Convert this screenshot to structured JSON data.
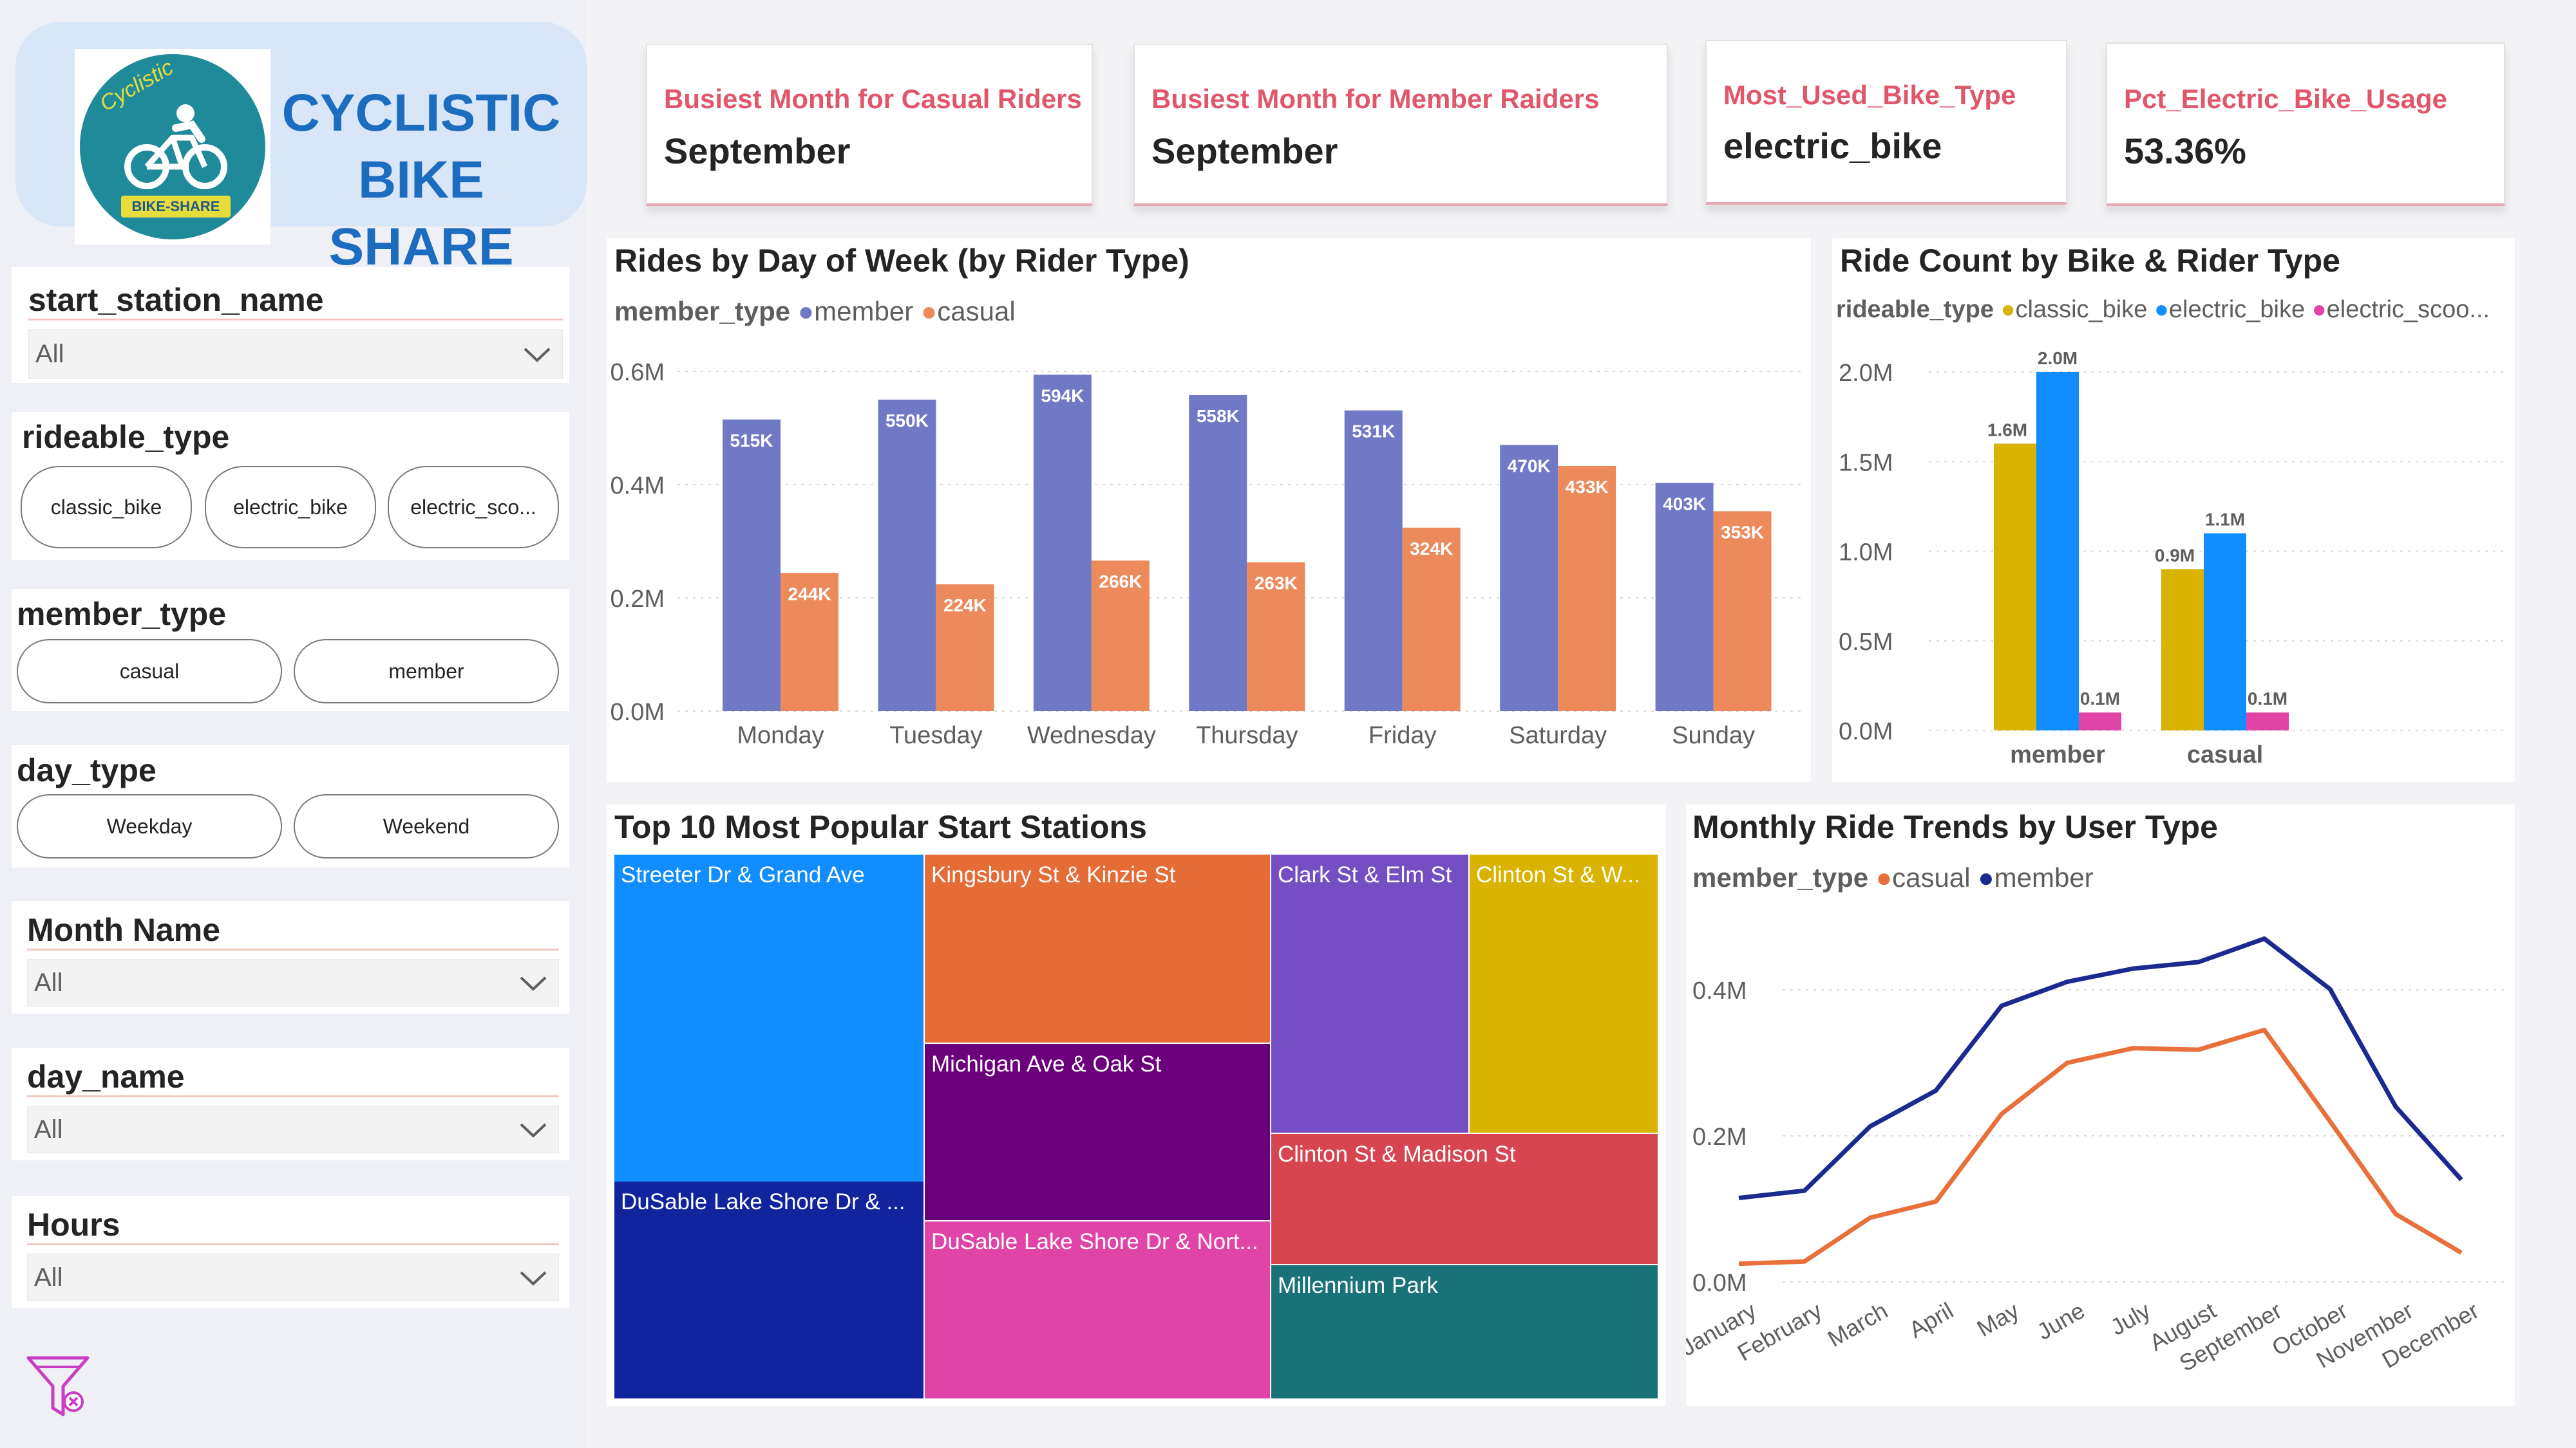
{
  "brand": {
    "title_line1": "CYCLISTIC",
    "title_line2": "BIKE SHARE",
    "logo_arc": "Cyclistic",
    "logo_ribbon": "BIKE-SHARE",
    "logo_icon": "cyclist-icon"
  },
  "slicers": {
    "start_station_name": {
      "title": "start_station_name",
      "value": "All"
    },
    "rideable_type": {
      "title": "rideable_type",
      "options": [
        "classic_bike",
        "electric_bike",
        "electric_sco..."
      ]
    },
    "member_type": {
      "title": "member_type",
      "options": [
        "casual",
        "member"
      ]
    },
    "day_type": {
      "title": "day_type",
      "options": [
        "Weekday",
        "Weekend"
      ]
    },
    "month_name": {
      "title": "Month Name",
      "value": "All"
    },
    "day_name": {
      "title": "day_name",
      "value": "All"
    },
    "hours": {
      "title": "Hours",
      "value": "All"
    }
  },
  "clear_filter_icon": "filter-clear-icon",
  "kpis": [
    {
      "label": "Busiest Month for Casual Riders",
      "value": "September"
    },
    {
      "label": "Busiest Month for Member Raiders",
      "value": "September"
    },
    {
      "label": "Most_Used_Bike_Type",
      "value": "electric_bike"
    },
    {
      "label": "Pct_Electric_Bike_Usage",
      "value": "53.36%"
    }
  ],
  "colors": {
    "member": "#7079c6",
    "casual": "#ec8a5c",
    "classic_bike": "#d8b400",
    "electric_bike": "#118dff",
    "electric_scooter": "#e044a7",
    "trend_member": "#1a2a8f",
    "trend_casual": "#e8703a",
    "kpi_label": "#e0566a",
    "brand_blue": "#1c6cbf"
  },
  "charts": {
    "rides_by_day": {
      "title": "Rides by Day of Week (by Rider Type)",
      "legend_title": "member_type",
      "legend": [
        "member",
        "casual"
      ],
      "y_ticks": [
        "0.6M",
        "0.4M",
        "0.2M",
        "0.0M"
      ]
    },
    "bike_rider": {
      "title": "Ride Count by Bike & Rider Type",
      "legend_title": "rideable_type",
      "legend": [
        "classic_bike",
        "electric_bike",
        "electric_scoo..."
      ],
      "y_ticks": [
        "2.0M",
        "1.5M",
        "1.0M",
        "0.5M",
        "0.0M"
      ]
    },
    "treemap": {
      "title": "Top 10 Most Popular Start Stations"
    },
    "monthly": {
      "title": "Monthly Ride Trends by User Type",
      "legend_title": "member_type",
      "legend": [
        "casual",
        "member"
      ],
      "y_ticks": [
        "0.4M",
        "0.2M",
        "0.0M"
      ]
    }
  },
  "chart_data": [
    {
      "type": "bar",
      "title": "Rides by Day of Week (by Rider Type)",
      "categories": [
        "Monday",
        "Tuesday",
        "Wednesday",
        "Thursday",
        "Friday",
        "Saturday",
        "Sunday"
      ],
      "series": [
        {
          "name": "member",
          "values": [
            515,
            550,
            594,
            558,
            531,
            470,
            403
          ],
          "labels": [
            "515K",
            "550K",
            "594K",
            "558K",
            "531K",
            "470K",
            "403K"
          ]
        },
        {
          "name": "casual",
          "values": [
            244,
            224,
            266,
            263,
            324,
            433,
            353
          ],
          "labels": [
            "244K",
            "224K",
            "266K",
            "263K",
            "324K",
            "433K",
            "353K"
          ]
        }
      ],
      "unit": "thousands",
      "ylim": [
        0,
        0.6
      ],
      "y_unit": "millions"
    },
    {
      "type": "bar",
      "title": "Ride Count by Bike & Rider Type",
      "categories": [
        "member",
        "casual"
      ],
      "series": [
        {
          "name": "classic_bike",
          "values": [
            1.6,
            0.9
          ],
          "labels": [
            "1.6M",
            "0.9M"
          ]
        },
        {
          "name": "electric_bike",
          "values": [
            2.0,
            1.1
          ],
          "labels": [
            "2.0M",
            "1.1M"
          ]
        },
        {
          "name": "electric_scoo...",
          "values": [
            0.1,
            0.1
          ],
          "labels": [
            "0.1M",
            "0.1M"
          ]
        }
      ],
      "ylim": [
        0,
        2.0
      ],
      "y_unit": "millions"
    },
    {
      "type": "treemap",
      "title": "Top 10 Most Popular Start Stations",
      "items": [
        {
          "name": "Streeter Dr & Grand Ave",
          "color": "#118dff"
        },
        {
          "name": "DuSable Lake Shore Dr & ...",
          "color": "#12239e"
        },
        {
          "name": "Kingsbury St & Kinzie St",
          "color": "#e66c37"
        },
        {
          "name": "Michigan Ave & Oak St",
          "color": "#6b007b"
        },
        {
          "name": "DuSable Lake Shore Dr & Nort...",
          "color": "#e044a7"
        },
        {
          "name": "Clark St & Elm St",
          "color": "#744ec2"
        },
        {
          "name": "Clinton St & W...",
          "color": "#d9b300"
        },
        {
          "name": "Clinton St & Madison St",
          "color": "#d64550"
        },
        {
          "name": "Millennium Park",
          "color": "#197278"
        }
      ]
    },
    {
      "type": "line",
      "title": "Monthly Ride Trends by User Type",
      "categories": [
        "January",
        "February",
        "March",
        "April",
        "May",
        "June",
        "July",
        "August",
        "September",
        "October",
        "November",
        "December"
      ],
      "series": [
        {
          "name": "casual",
          "values": [
            0.025,
            0.028,
            0.088,
            0.11,
            0.23,
            0.3,
            0.32,
            0.318,
            0.345,
            0.22,
            0.093,
            0.04
          ]
        },
        {
          "name": "member",
          "values": [
            0.115,
            0.125,
            0.213,
            0.262,
            0.378,
            0.411,
            0.429,
            0.438,
            0.47,
            0.401,
            0.24,
            0.14
          ]
        }
      ],
      "ylim": [
        0,
        0.5
      ],
      "y_unit": "millions"
    }
  ]
}
